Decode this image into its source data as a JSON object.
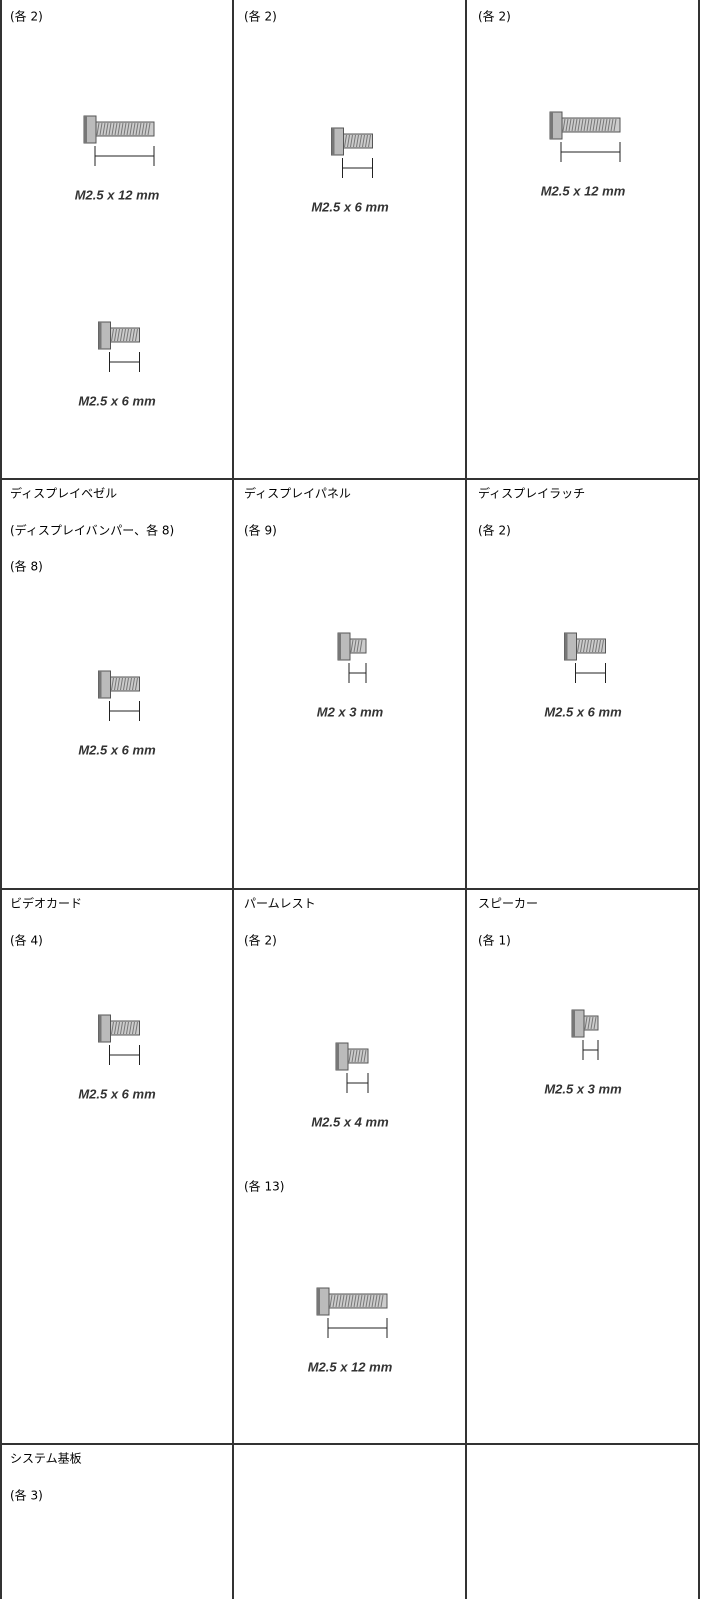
{
  "table": {
    "rows": [
      [
        {
          "content": [
            {
              "text": "(各 2)"
            },
            {
              "screw": "M2.5 x 12 mm"
            },
            {
              "screw": "M2.5 x 6 mm"
            }
          ]
        },
        {
          "content": [
            {
              "text": "(各 2)"
            },
            {
              "screw": "M2.5 x 6 mm"
            }
          ]
        },
        {
          "content": [
            {
              "text": "(各 2)"
            },
            {
              "screw": "M2.5 x 12 mm"
            }
          ]
        }
      ],
      [
        {
          "title": "ディスプレイベゼル",
          "content": [
            {
              "text": "(ディスプレイバンパー、各 8)"
            },
            {
              "text": "(各 8)"
            },
            {
              "screw": "M2.5 x 6 mm"
            }
          ]
        },
        {
          "title": "ディスプレイパネル",
          "content": [
            {
              "text": "(各 9)"
            },
            {
              "screw": "M2 x 3 mm"
            }
          ]
        },
        {
          "title": "ディスプレイラッチ",
          "content": [
            {
              "text": "(各 2)"
            },
            {
              "screw": "M2.5 x 6 mm"
            }
          ]
        }
      ],
      [
        {
          "title": "ビデオカード",
          "content": [
            {
              "text": "(各 4)"
            },
            {
              "screw": "M2.5 x 6 mm"
            }
          ]
        },
        {
          "title": "パームレスト",
          "content": [
            {
              "text": "(各 2)"
            },
            {
              "screw": "M2.5 x 4 mm"
            },
            {
              "text": "(各 13)"
            },
            {
              "screw": "M2.5 x 12 mm"
            }
          ]
        },
        {
          "title": "スピーカー",
          "content": [
            {
              "text": "(各 1)"
            },
            {
              "screw": "M2.5 x 3 mm"
            }
          ]
        }
      ],
      [
        {
          "title": "システム基板",
          "content": [
            {
              "text": "(各 3)"
            }
          ]
        },
        {
          "content": []
        },
        {
          "content": []
        }
      ]
    ]
  }
}
